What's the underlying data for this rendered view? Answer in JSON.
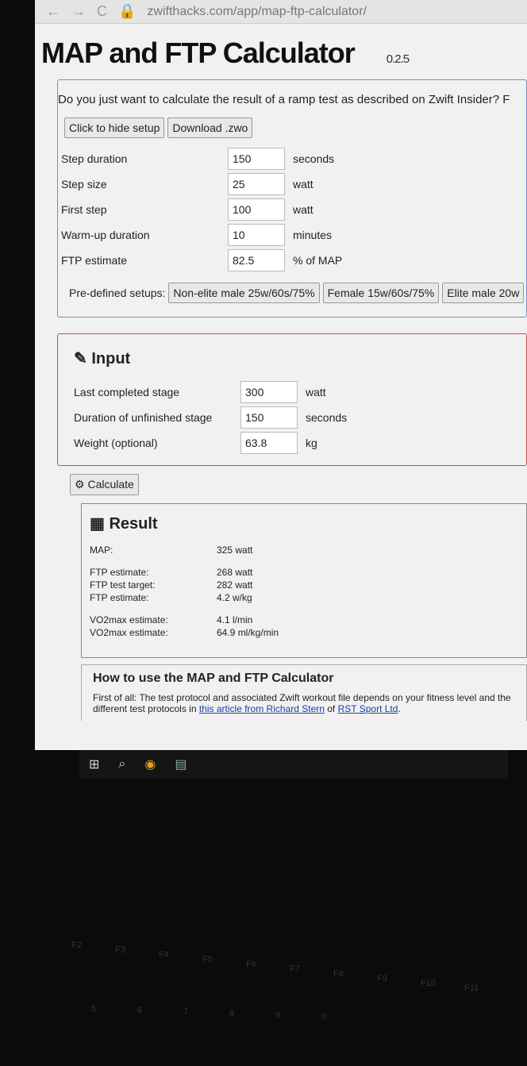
{
  "browser": {
    "url": "zwifthacks.com/app/map-ftp-calculator/"
  },
  "page": {
    "title": "MAP and FTP Calculator",
    "version": "0.2.5"
  },
  "setup": {
    "question": "Do you just want to calculate the result of a ramp test as described on Zwift Insider? F",
    "hide_button": "Click to hide setup",
    "download_button": "Download .zwo",
    "fields": [
      {
        "label": "Step duration",
        "value": "150",
        "unit": "seconds"
      },
      {
        "label": "Step size",
        "value": "25",
        "unit": "watt"
      },
      {
        "label": "First step",
        "value": "100",
        "unit": "watt"
      },
      {
        "label": "Warm-up duration",
        "value": "10",
        "unit": "minutes"
      },
      {
        "label": "FTP estimate",
        "value": "82.5",
        "unit": "% of MAP"
      }
    ],
    "predefined_label": "Pre-defined setups:",
    "predefined": [
      "Non-elite male 25w/60s/75%",
      "Female 15w/60s/75%",
      "Elite male 20w"
    ]
  },
  "input": {
    "title": "Input",
    "fields": [
      {
        "label": "Last completed stage",
        "value": "300",
        "unit": "watt"
      },
      {
        "label": "Duration of unfinished stage",
        "value": "150",
        "unit": "seconds"
      },
      {
        "label": "Weight (optional)",
        "value": "63.8",
        "unit": "kg"
      }
    ],
    "calculate": "Calculate"
  },
  "result": {
    "title": "Result",
    "rows": [
      {
        "label": "MAP:",
        "value": "325 watt"
      },
      {
        "label": "FTP estimate:",
        "value": "268 watt"
      },
      {
        "label": "FTP test target:",
        "value": "282 watt"
      },
      {
        "label": "FTP estimate:",
        "value": "4.2 w/kg"
      },
      {
        "label": "VO2max estimate:",
        "value": "4.1 l/min"
      },
      {
        "label": "VO2max estimate:",
        "value": "64.9 ml/kg/min"
      }
    ]
  },
  "how": {
    "title": "How to use the MAP and FTP Calculator",
    "text1": "First of all: The test protocol and associated Zwift workout file depends on your fitness level and the",
    "text2": "different test protocols in ",
    "link1": "this article from Richard Stern",
    "text3": " of ",
    "link2": "RST Sport Ltd",
    "text4": "."
  },
  "keyboard": [
    "F2",
    "F3",
    "F4",
    "F5",
    "F6",
    "F7",
    "F8",
    "F9",
    "F10",
    "F11",
    "5",
    "6",
    "7",
    "8",
    "9",
    "0"
  ]
}
